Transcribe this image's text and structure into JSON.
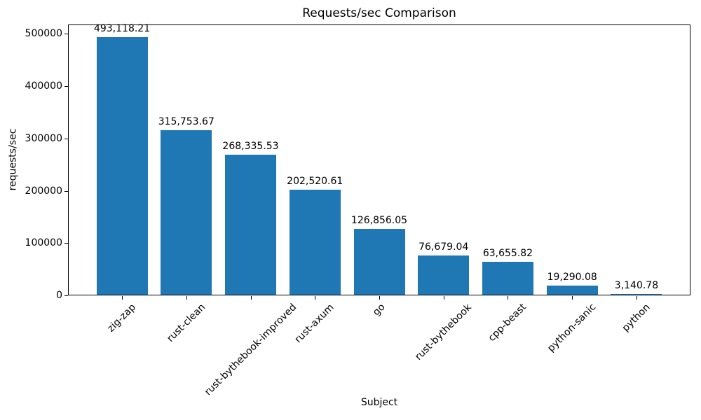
{
  "chart_data": {
    "type": "bar",
    "title": "Requests/sec Comparison",
    "xlabel": "Subject",
    "ylabel": "requests/sec",
    "categories": [
      "zig-zap",
      "rust-clean",
      "rust-bythebook-improved",
      "rust-axum",
      "go",
      "rust-bythebook",
      "cpp-beast",
      "python-sanic",
      "python"
    ],
    "values": [
      493118.21,
      315753.67,
      268335.53,
      202520.61,
      126856.05,
      76679.04,
      63655.82,
      19290.08,
      3140.78
    ],
    "value_labels": [
      "493,118.21",
      "315,753.67",
      "268,335.53",
      "202,520.61",
      "126,856.05",
      "76,679.04",
      "63,655.82",
      "19,290.08",
      "3,140.78"
    ],
    "yticks": [
      0,
      100000,
      200000,
      300000,
      400000,
      500000
    ],
    "ytick_labels": [
      "0",
      "100000",
      "200000",
      "300000",
      "400000",
      "500000"
    ],
    "ylim": [
      0,
      517774
    ],
    "xlim": [
      -0.84,
      8.84
    ],
    "bar_width": 0.8,
    "bar_color": "#1f77b4",
    "background_color": "#ffffff",
    "text_color": "#000000",
    "grid": false,
    "legend": "none",
    "xtick_rotation_deg": 45
  }
}
